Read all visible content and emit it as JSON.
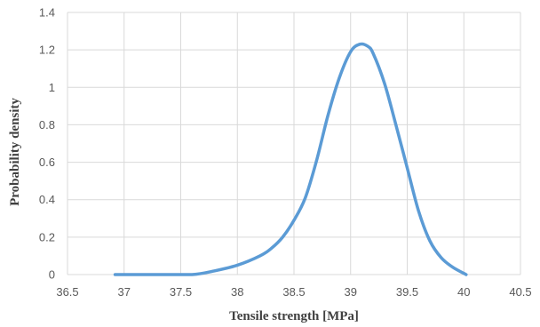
{
  "chart_data": {
    "type": "line",
    "title": "",
    "xlabel": "Tensile strength [MPa]",
    "ylabel": "Probability density",
    "xlim": [
      36.5,
      40.5
    ],
    "ylim": [
      0,
      1.4
    ],
    "x_ticks": [
      "36.5",
      "37",
      "37.5",
      "38",
      "38.5",
      "39",
      "39.5",
      "40",
      "40.5"
    ],
    "y_ticks": [
      "0",
      "0.2",
      "0.4",
      "0.6",
      "0.8",
      "1",
      "1.2",
      "1.4"
    ],
    "grid": true,
    "legend": "none",
    "series": [
      {
        "color": "#5b9bd5",
        "points": [
          [
            36.92,
            0.0
          ],
          [
            37.3,
            0.0
          ],
          [
            37.6,
            0.0
          ],
          [
            37.8,
            0.02
          ],
          [
            38.0,
            0.05
          ],
          [
            38.2,
            0.1
          ],
          [
            38.3,
            0.14
          ],
          [
            38.4,
            0.2
          ],
          [
            38.5,
            0.29
          ],
          [
            38.6,
            0.41
          ],
          [
            38.7,
            0.61
          ],
          [
            38.8,
            0.85
          ],
          [
            38.9,
            1.05
          ],
          [
            39.0,
            1.19
          ],
          [
            39.08,
            1.23
          ],
          [
            39.15,
            1.22
          ],
          [
            39.2,
            1.18
          ],
          [
            39.3,
            1.02
          ],
          [
            39.4,
            0.8
          ],
          [
            39.5,
            0.57
          ],
          [
            39.6,
            0.34
          ],
          [
            39.7,
            0.18
          ],
          [
            39.8,
            0.09
          ],
          [
            39.9,
            0.04
          ],
          [
            40.02,
            0.0
          ]
        ]
      }
    ]
  }
}
